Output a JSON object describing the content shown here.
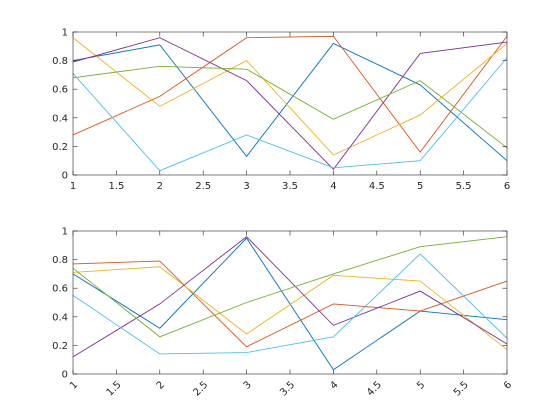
{
  "chart_data": [
    {
      "type": "line",
      "title": "",
      "xlabel": "",
      "ylabel": "",
      "xlim": [
        1,
        6
      ],
      "ylim": [
        0,
        1
      ],
      "grid": false,
      "x": [
        1,
        2,
        3,
        4,
        5,
        6
      ],
      "x_ticks": [
        1,
        1.5,
        2,
        2.5,
        3,
        3.5,
        4,
        4.5,
        5,
        5.5,
        6
      ],
      "x_tick_labels": [
        "1",
        "1.5",
        "2",
        "2.5",
        "3",
        "3.5",
        "4",
        "4.5",
        "5",
        "5.5",
        "6"
      ],
      "y_ticks": [
        0,
        0.2,
        0.4,
        0.6,
        0.8,
        1
      ],
      "y_tick_labels": [
        "0",
        "0.2",
        "0.4",
        "0.6",
        "0.8",
        "1"
      ],
      "x_tick_rotation": 0,
      "series": [
        {
          "color": "#0072BD",
          "values": [
            0.8,
            0.91,
            0.13,
            0.92,
            0.63,
            0.1
          ]
        },
        {
          "color": "#D95319",
          "values": [
            0.28,
            0.55,
            0.96,
            0.97,
            0.16,
            0.97
          ]
        },
        {
          "color": "#EDB120",
          "values": [
            0.96,
            0.48,
            0.8,
            0.14,
            0.42,
            0.92
          ]
        },
        {
          "color": "#7E2F8E",
          "values": [
            0.79,
            0.96,
            0.66,
            0.04,
            0.85,
            0.93
          ]
        },
        {
          "color": "#77AC30",
          "values": [
            0.68,
            0.76,
            0.74,
            0.39,
            0.66,
            0.19
          ]
        },
        {
          "color": "#4DBEEE",
          "values": [
            0.71,
            0.03,
            0.28,
            0.05,
            0.1,
            0.82
          ]
        }
      ]
    },
    {
      "type": "line",
      "title": "",
      "xlabel": "",
      "ylabel": "",
      "xlim": [
        1,
        6
      ],
      "ylim": [
        0,
        1
      ],
      "grid": false,
      "x": [
        1,
        2,
        3,
        4,
        5,
        6
      ],
      "x_ticks": [
        1,
        1.5,
        2,
        2.5,
        3,
        3.5,
        4,
        4.5,
        5,
        5.5,
        6
      ],
      "x_tick_labels": [
        "1",
        "1.5",
        "2",
        "2.5",
        "3",
        "3.5",
        "4",
        "4.5",
        "5",
        "5.5",
        "6"
      ],
      "y_ticks": [
        0,
        0.2,
        0.4,
        0.6,
        0.8,
        1
      ],
      "y_tick_labels": [
        "0",
        "0.2",
        "0.4",
        "0.6",
        "0.8",
        "1"
      ],
      "x_tick_rotation": 45,
      "series": [
        {
          "color": "#0072BD",
          "values": [
            0.7,
            0.32,
            0.95,
            0.03,
            0.44,
            0.38
          ]
        },
        {
          "color": "#D95319",
          "values": [
            0.77,
            0.79,
            0.19,
            0.49,
            0.44,
            0.65
          ]
        },
        {
          "color": "#EDB120",
          "values": [
            0.71,
            0.75,
            0.28,
            0.69,
            0.65,
            0.17
          ]
        },
        {
          "color": "#7E2F8E",
          "values": [
            0.12,
            0.49,
            0.96,
            0.34,
            0.58,
            0.21
          ]
        },
        {
          "color": "#77AC30",
          "values": [
            0.74,
            0.26,
            0.5,
            0.7,
            0.89,
            0.96
          ]
        },
        {
          "color": "#4DBEEE",
          "values": [
            0.55,
            0.14,
            0.15,
            0.26,
            0.84,
            0.25
          ]
        }
      ]
    }
  ]
}
